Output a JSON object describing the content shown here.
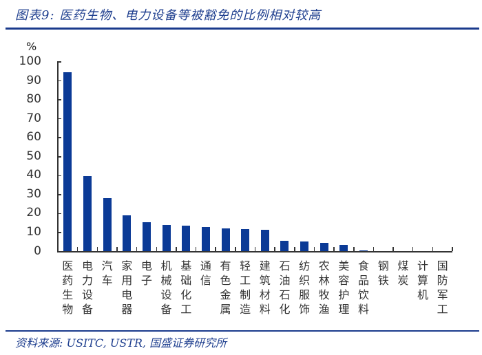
{
  "header": {
    "title": "图表9:  医药生物、电力设备等被豁免的比例相对较高"
  },
  "footer": {
    "source": "资料来源:  USITC, USTR, 国盛证券研究所"
  },
  "colors": {
    "bar": "#0b3a96",
    "rule": "#1a3a8c",
    "title": "#1f3f8f"
  },
  "chart_data": {
    "type": "bar",
    "title": "医药生物、电力设备等被豁免的比例相对较高",
    "xlabel": "",
    "ylabel": "%",
    "ylim": [
      0,
      100
    ],
    "yticks": [
      0,
      10,
      20,
      30,
      40,
      50,
      60,
      70,
      80,
      90,
      100
    ],
    "grid": false,
    "legend": null,
    "categories": [
      "医药生物",
      "电力设备",
      "汽车",
      "家用电器",
      "电子",
      "机械设备",
      "基础化工",
      "通信",
      "有色金属",
      "轻工制造",
      "建筑材料",
      "石油石化",
      "纺织服饰",
      "农林牧渔",
      "美容护理",
      "食品饮料",
      "钢铁",
      "煤炭",
      "计算机",
      "国防军工"
    ],
    "values": [
      94.5,
      39.6,
      28.1,
      19.0,
      15.6,
      13.9,
      13.7,
      13.0,
      12.2,
      11.9,
      11.3,
      5.7,
      5.2,
      4.4,
      3.4,
      0.6,
      0,
      0,
      0,
      0
    ]
  }
}
